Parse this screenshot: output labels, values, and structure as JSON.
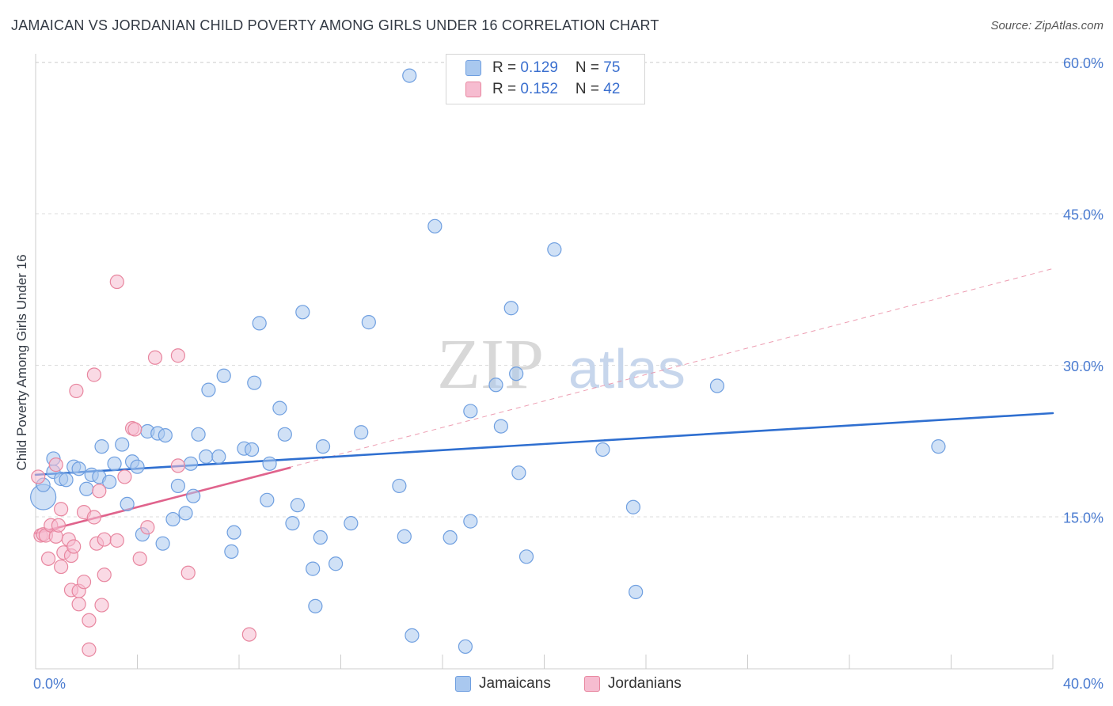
{
  "header": {
    "title": "JAMAICAN VS JORDANIAN CHILD POVERTY AMONG GIRLS UNDER 16 CORRELATION CHART",
    "source": "Source: ZipAtlas.com"
  },
  "watermark": {
    "zip": "ZIP",
    "atlas": "atlas"
  },
  "legend": {
    "rows": [
      {
        "r_label": "R = ",
        "r_value": "0.129",
        "n_label": "N = ",
        "n_value": "75",
        "color": "#a9c8ef"
      },
      {
        "r_label": "R = ",
        "r_value": "0.152",
        "n_label": "N = ",
        "n_value": "42",
        "color": "#f6bcd0"
      }
    ]
  },
  "bottom_legend": {
    "items": [
      "Jamaicans",
      "Jordanians"
    ]
  },
  "chart_data": {
    "type": "scatter",
    "title": "JAMAICAN VS JORDANIAN CHILD POVERTY AMONG GIRLS UNDER 16 CORRELATION CHART",
    "ylabel": "Child Poverty Among Girls Under 16",
    "xlabel": "",
    "xlim": [
      0,
      40
    ],
    "ylim": [
      0,
      60
    ],
    "x_tick_labels": [
      "0.0%",
      "40.0%"
    ],
    "y_tick_labels": [
      "15.0%",
      "30.0%",
      "45.0%",
      "60.0%"
    ],
    "y_ticks": [
      15,
      30,
      45,
      60
    ],
    "grid": "horizontal dashed",
    "legend_position": "top-center",
    "series": [
      {
        "name": "Jamaicans",
        "color": "#a9c8ef",
        "stroke": "#6f9fe0",
        "trend": {
          "x": [
            0,
            40
          ],
          "y": [
            19.2,
            25.3
          ],
          "color": "#2f6fd0"
        },
        "points": [
          [
            0.3,
            17.0
          ],
          [
            0.3,
            18.2
          ],
          [
            0.7,
            20.8
          ],
          [
            0.7,
            19.5
          ],
          [
            1.0,
            18.8
          ],
          [
            1.2,
            18.7
          ],
          [
            1.5,
            20.0
          ],
          [
            1.7,
            19.8
          ],
          [
            2.0,
            17.8
          ],
          [
            2.2,
            19.2
          ],
          [
            2.5,
            19.0
          ],
          [
            2.6,
            22.0
          ],
          [
            2.9,
            18.5
          ],
          [
            3.1,
            20.3
          ],
          [
            3.4,
            22.2
          ],
          [
            3.6,
            16.3
          ],
          [
            3.8,
            20.5
          ],
          [
            4.0,
            20.0
          ],
          [
            4.2,
            13.3
          ],
          [
            4.4,
            23.5
          ],
          [
            4.8,
            23.3
          ],
          [
            5.1,
            23.1
          ],
          [
            5.0,
            12.4
          ],
          [
            5.4,
            14.8
          ],
          [
            5.6,
            18.1
          ],
          [
            5.9,
            15.4
          ],
          [
            6.1,
            20.3
          ],
          [
            6.2,
            17.1
          ],
          [
            6.4,
            23.2
          ],
          [
            6.7,
            21.0
          ],
          [
            6.8,
            27.6
          ],
          [
            7.2,
            21.0
          ],
          [
            7.4,
            29.0
          ],
          [
            7.7,
            11.6
          ],
          [
            7.8,
            13.5
          ],
          [
            8.2,
            21.8
          ],
          [
            8.5,
            21.7
          ],
          [
            8.6,
            28.3
          ],
          [
            8.8,
            34.2
          ],
          [
            9.1,
            16.7
          ],
          [
            9.2,
            20.3
          ],
          [
            9.6,
            25.8
          ],
          [
            9.8,
            23.2
          ],
          [
            10.1,
            14.4
          ],
          [
            10.3,
            16.2
          ],
          [
            10.5,
            35.3
          ],
          [
            10.9,
            9.9
          ],
          [
            11.0,
            6.2
          ],
          [
            11.2,
            13.0
          ],
          [
            11.3,
            22.0
          ],
          [
            11.8,
            10.4
          ],
          [
            12.4,
            14.4
          ],
          [
            12.8,
            23.4
          ],
          [
            13.1,
            34.3
          ],
          [
            14.3,
            18.1
          ],
          [
            14.5,
            13.1
          ],
          [
            14.7,
            58.7
          ],
          [
            14.8,
            3.3
          ],
          [
            15.7,
            43.8
          ],
          [
            16.3,
            13.0
          ],
          [
            16.9,
            2.2
          ],
          [
            17.1,
            14.6
          ],
          [
            17.1,
            25.5
          ],
          [
            18.1,
            28.1
          ],
          [
            18.3,
            24.0
          ],
          [
            18.7,
            35.7
          ],
          [
            18.9,
            29.2
          ],
          [
            19.0,
            19.4
          ],
          [
            19.3,
            11.1
          ],
          [
            20.4,
            41.5
          ],
          [
            22.3,
            21.7
          ],
          [
            23.5,
            16.0
          ],
          [
            23.6,
            7.6
          ],
          [
            26.8,
            28.0
          ],
          [
            35.5,
            22.0
          ]
        ]
      },
      {
        "name": "Jordanians",
        "color": "#f6bcd0",
        "stroke": "#e8869f",
        "trend": {
          "x": [
            0,
            10
          ],
          "y": [
            13.4,
            19.9
          ],
          "color": "#e0638c"
        },
        "trend_extended": {
          "x": [
            0,
            40
          ],
          "y": [
            13.4,
            39.6
          ],
          "color": "#e8869f"
        },
        "points": [
          [
            0.1,
            19.0
          ],
          [
            0.2,
            13.2
          ],
          [
            0.3,
            13.3
          ],
          [
            0.4,
            13.2
          ],
          [
            0.5,
            10.9
          ],
          [
            0.6,
            14.2
          ],
          [
            0.8,
            20.2
          ],
          [
            0.8,
            13.1
          ],
          [
            0.9,
            14.2
          ],
          [
            1.0,
            15.8
          ],
          [
            1.0,
            10.1
          ],
          [
            1.1,
            11.5
          ],
          [
            1.3,
            12.8
          ],
          [
            1.4,
            11.2
          ],
          [
            1.4,
            7.8
          ],
          [
            1.5,
            12.1
          ],
          [
            1.6,
            27.5
          ],
          [
            1.7,
            7.7
          ],
          [
            1.7,
            6.4
          ],
          [
            1.9,
            8.6
          ],
          [
            1.9,
            15.5
          ],
          [
            2.1,
            1.9
          ],
          [
            2.1,
            4.8
          ],
          [
            2.3,
            15.0
          ],
          [
            2.3,
            29.1
          ],
          [
            2.4,
            12.4
          ],
          [
            2.5,
            17.6
          ],
          [
            2.6,
            6.3
          ],
          [
            2.7,
            12.8
          ],
          [
            2.7,
            9.3
          ],
          [
            3.2,
            12.7
          ],
          [
            3.2,
            38.3
          ],
          [
            3.5,
            19.0
          ],
          [
            3.8,
            23.8
          ],
          [
            3.9,
            23.7
          ],
          [
            4.1,
            10.9
          ],
          [
            4.4,
            14.0
          ],
          [
            4.7,
            30.8
          ],
          [
            5.6,
            31.0
          ],
          [
            5.6,
            20.1
          ],
          [
            6.0,
            9.5
          ],
          [
            8.4,
            3.4
          ]
        ]
      }
    ]
  }
}
